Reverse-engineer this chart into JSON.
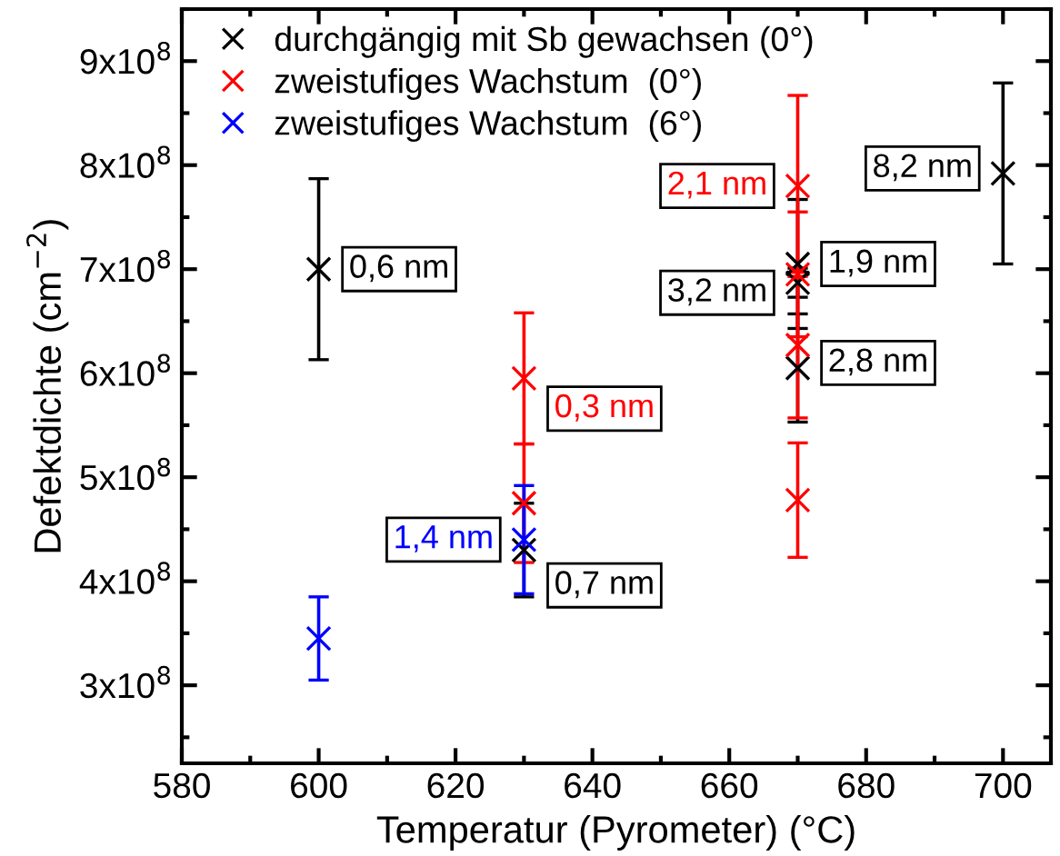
{
  "chart_data": {
    "type": "scatter",
    "xlabel": "Temperatur (Pyrometer) (°C)",
    "ylabel": "Defektdichte (cm$^{−2}$)",
    "xlim": [
      580,
      707
    ],
    "xticks": [
      580,
      600,
      620,
      640,
      660,
      680,
      700
    ],
    "ylim": [
      225000000,
      950000000
    ],
    "yticks": [
      {
        "value": 300000000,
        "label": "3x10$^{8}$"
      },
      {
        "value": 400000000,
        "label": "4x10$^{8}$"
      },
      {
        "value": 500000000,
        "label": "5x10$^{8}$"
      },
      {
        "value": 600000000,
        "label": "6x10$^{8}$"
      },
      {
        "value": 700000000,
        "label": "7x10$^{8}$"
      },
      {
        "value": 800000000,
        "label": "8x10$^{8}$"
      },
      {
        "value": 900000000,
        "label": "9x10$^{8}$"
      }
    ],
    "marker": "cross",
    "grid": false,
    "legend": "top left",
    "series": [
      {
        "name": "durchgängig mit Sb gewachsen (0°)",
        "color": "#000000",
        "x": [
          600,
          630,
          670,
          670,
          670,
          700
        ],
        "values": [
          700000000,
          430000000,
          705000000,
          687000000,
          605000000,
          792000000
        ],
        "errors": [
          87000000,
          45000000,
          62000000,
          14000000,
          52000000,
          87000000
        ]
      },
      {
        "name": "zweistufiges Wachstum  (0°)",
        "color": "#ff0000",
        "x": [
          630,
          630,
          670,
          670,
          670,
          670
        ],
        "values": [
          595000000,
          475000000,
          780000000,
          695000000,
          627000000,
          478000000
        ],
        "errors": [
          63000000,
          57000000,
          87000000,
          60000000,
          70000000,
          55000000
        ]
      },
      {
        "name": "zweistufiges Wachstum  (6°)",
        "color": "#0000ff",
        "x": [
          600,
          630
        ],
        "values": [
          345000000,
          440000000
        ],
        "errors": [
          40000000,
          52000000
        ]
      }
    ],
    "annotations": [
      {
        "text": "0,6 nm",
        "x": 600,
        "y": 700000000
      },
      {
        "text": "0,3 nm",
        "x": 630,
        "y": 595000000
      },
      {
        "text": "1,4 nm",
        "x": 630,
        "y": 440000000
      },
      {
        "text": "0,7 nm",
        "x": 630,
        "y": 430000000
      },
      {
        "text": "2,1 nm",
        "x": 670,
        "y": 780000000
      },
      {
        "text": "1,9 nm",
        "x": 670,
        "y": 705000000
      },
      {
        "text": "3,2 nm",
        "x": 670,
        "y": 687000000
      },
      {
        "text": "2,8 nm",
        "x": 670,
        "y": 605000000
      },
      {
        "text": "8,2 nm",
        "x": 700,
        "y": 792000000
      }
    ]
  }
}
